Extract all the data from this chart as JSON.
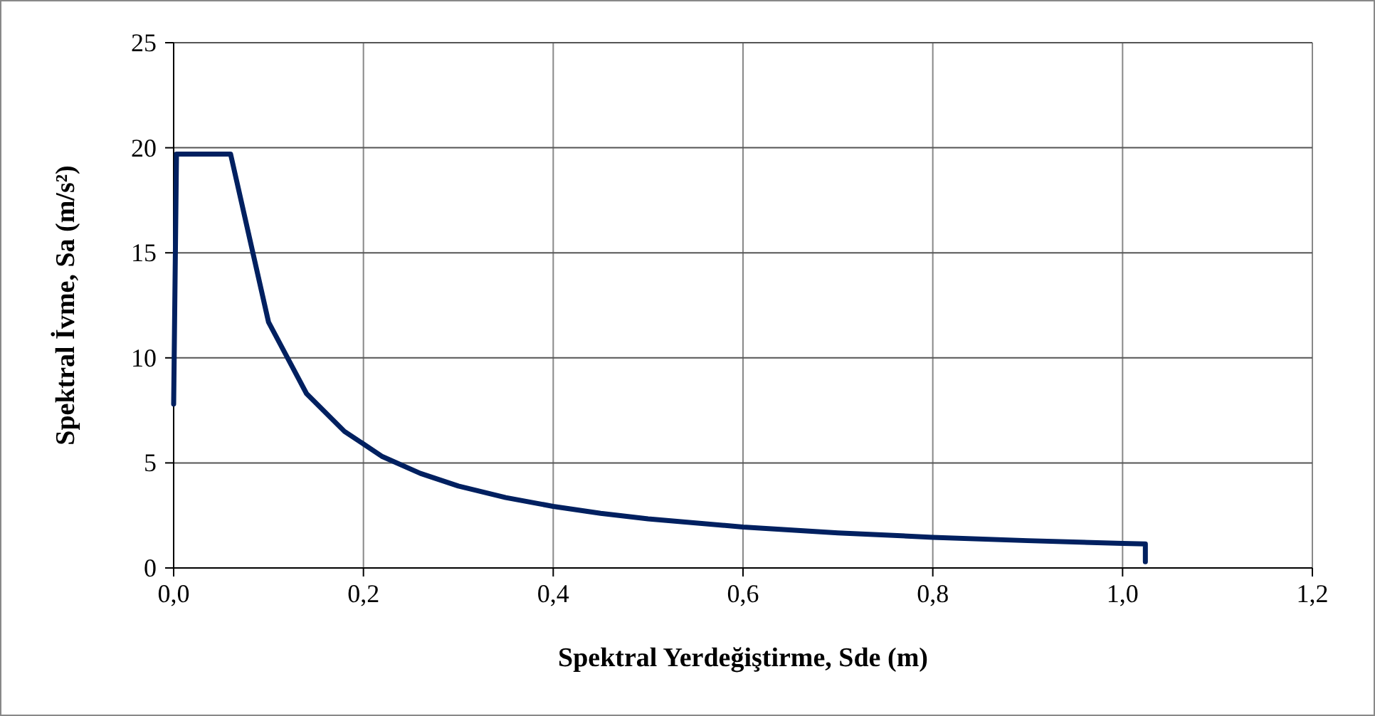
{
  "chart_data": {
    "type": "line",
    "xlabel": "Spektral Yerdeğiştirme, Sde (m)",
    "ylabel": "Spektral İvme, Sa (m/s²)",
    "series": [
      {
        "color": "#002060",
        "x": [
          0,
          0.003,
          0.06,
          0.1,
          0.14,
          0.18,
          0.22,
          0.26,
          0.3,
          0.35,
          0.4,
          0.45,
          0.5,
          0.6,
          0.7,
          0.8,
          0.9,
          1.0,
          1.024,
          1.024
        ],
        "values": [
          7.8,
          19.7,
          19.7,
          11.7,
          8.3,
          6.5,
          5.3,
          4.5,
          3.9,
          3.35,
          2.93,
          2.6,
          2.34,
          1.95,
          1.67,
          1.46,
          1.3,
          1.17,
          1.14,
          0.3
        ]
      }
    ],
    "xlim": [
      0,
      1.2
    ],
    "xticks": [
      {
        "value": 0,
        "label": "0,0"
      },
      {
        "value": 0.2,
        "label": "0,2"
      },
      {
        "value": 0.4,
        "label": "0,4"
      },
      {
        "value": 0.6,
        "label": "0,6"
      },
      {
        "value": 0.8,
        "label": "0,8"
      },
      {
        "value": 1.0,
        "label": "1,0"
      },
      {
        "value": 1.2,
        "label": "1,2"
      }
    ],
    "ylim": [
      0,
      25
    ],
    "yticks": [
      0,
      5,
      10,
      15,
      20,
      25
    ],
    "grid": true
  }
}
